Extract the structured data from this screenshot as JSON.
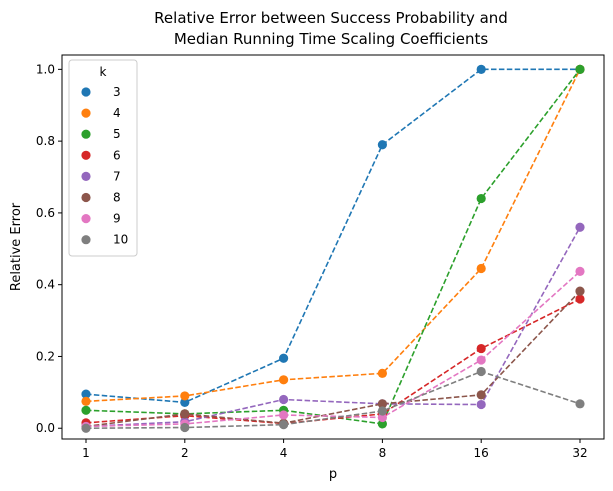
{
  "chart_data": {
    "type": "line",
    "title_line1": "Relative Error between Success Probability and",
    "title_line2": "Median Running Time Scaling Coefficients",
    "xlabel": "p",
    "ylabel": "Relative Error",
    "x_scale": "log2",
    "x": [
      1,
      2,
      4,
      8,
      16,
      32
    ],
    "x_tick_labels": [
      "1",
      "2",
      "4",
      "8",
      "16",
      "32"
    ],
    "ylim": [
      -0.03,
      1.04
    ],
    "y_ticks": [
      0.0,
      0.2,
      0.4,
      0.6,
      0.8,
      1.0
    ],
    "y_tick_labels": [
      "0.0",
      "0.2",
      "0.4",
      "0.6",
      "0.8",
      "1.0"
    ],
    "line_style": "dashed",
    "marker": "circle",
    "grid": false,
    "legend_title": "k",
    "legend_position": "top-left",
    "series": [
      {
        "name": "3",
        "color": "#1f77b4",
        "values": [
          0.095,
          0.072,
          0.195,
          0.79,
          1.0,
          1.0
        ]
      },
      {
        "name": "4",
        "color": "#ff7f0e",
        "values": [
          0.075,
          0.09,
          0.135,
          0.153,
          0.445,
          1.0
        ]
      },
      {
        "name": "5",
        "color": "#2ca02c",
        "values": [
          0.05,
          0.04,
          0.05,
          0.012,
          0.64,
          1.0
        ]
      },
      {
        "name": "6",
        "color": "#d62728",
        "values": [
          0.015,
          0.035,
          0.013,
          0.04,
          0.222,
          0.36
        ]
      },
      {
        "name": "7",
        "color": "#9467bd",
        "values": [
          0.005,
          0.018,
          0.08,
          0.068,
          0.066,
          0.56
        ]
      },
      {
        "name": "8",
        "color": "#8c564b",
        "values": [
          0.005,
          0.04,
          0.014,
          0.068,
          0.093,
          0.382
        ]
      },
      {
        "name": "9",
        "color": "#e377c2",
        "values": [
          0.005,
          0.012,
          0.037,
          0.03,
          0.19,
          0.437
        ]
      },
      {
        "name": "10",
        "color": "#7f7f7f",
        "values": [
          0.0,
          0.002,
          0.01,
          0.048,
          0.158,
          0.068
        ]
      }
    ]
  }
}
